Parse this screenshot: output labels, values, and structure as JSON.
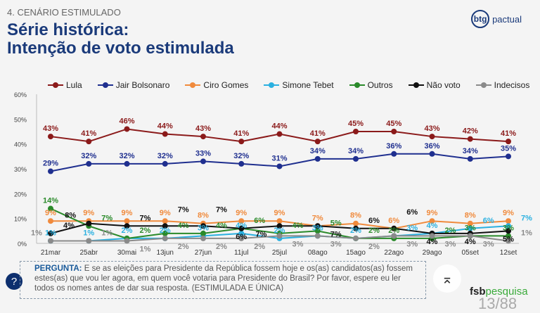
{
  "header": {
    "section": "4. CENÁRIO ESTIMULADO",
    "title_line1": "Série histórica:",
    "title_line2": "Intenção de voto estimulada",
    "logo_mark": "btg",
    "logo_text": "pactual"
  },
  "chart_data": {
    "type": "line",
    "ylim": [
      0,
      60
    ],
    "yticks": [
      "0%",
      "10%",
      "20%",
      "30%",
      "40%",
      "50%",
      "60%"
    ],
    "legend_placement": "top",
    "grid": false,
    "categories": [
      "21mar",
      "25abr",
      "30mai",
      "13jun",
      "27jun",
      "11jul",
      "25jul",
      "08ago",
      "15ago",
      "22ago",
      "29ago",
      "05set",
      "12set"
    ],
    "series": [
      {
        "name": "Lula",
        "color": "#8b1a1a",
        "values": [
          43,
          41,
          46,
          44,
          43,
          41,
          44,
          41,
          45,
          45,
          43,
          42,
          41
        ]
      },
      {
        "name": "Jair Bolsonaro",
        "color": "#1f2f8f",
        "values": [
          29,
          32,
          32,
          32,
          33,
          32,
          31,
          34,
          34,
          36,
          36,
          34,
          35
        ]
      },
      {
        "name": "Ciro Gomes",
        "color": "#f08a3c",
        "values": [
          9,
          9,
          9,
          9,
          8,
          9,
          9,
          7,
          8,
          6,
          9,
          8,
          9
        ]
      },
      {
        "name": "Simone Tebet",
        "color": "#2ab0e0",
        "values": [
          1,
          1,
          2,
          2,
          3,
          4,
          2,
          3,
          2,
          3,
          4,
          6,
          7
        ]
      },
      {
        "name": "Outros",
        "color": "#2a8a2a",
        "values": [
          14,
          7,
          2,
          4,
          4,
          6,
          4,
          5,
          2,
          2,
          2,
          3,
          3
        ]
      },
      {
        "name": "Não voto",
        "color": "#111111",
        "values": [
          4,
          8,
          7,
          7,
          7,
          6,
          7,
          7,
          6,
          6,
          4,
          4,
          5
        ]
      },
      {
        "name": "Indecisos",
        "color": "#8a8a8a",
        "values": [
          1,
          1,
          1,
          2,
          2,
          2,
          3,
          3,
          2,
          3,
          3,
          3,
          1
        ]
      }
    ]
  },
  "question": {
    "label": "PERGUNTA:",
    "text": " E se as eleições para Presidente da República fossem hoje e os(as) candidatos(as) fossem estes(as) que vou ler agora, em quem você votaria para Presidente do Brasil? Por favor, espere eu ler todos os nomes antes de dar sua resposta. (ESTIMULADA E ÚNICA)",
    "icon": "?"
  },
  "scroll_up_icon": "⌅",
  "footer": {
    "brand_bold": "fsb",
    "brand_light": "pesquisa",
    "page": "13/88"
  }
}
